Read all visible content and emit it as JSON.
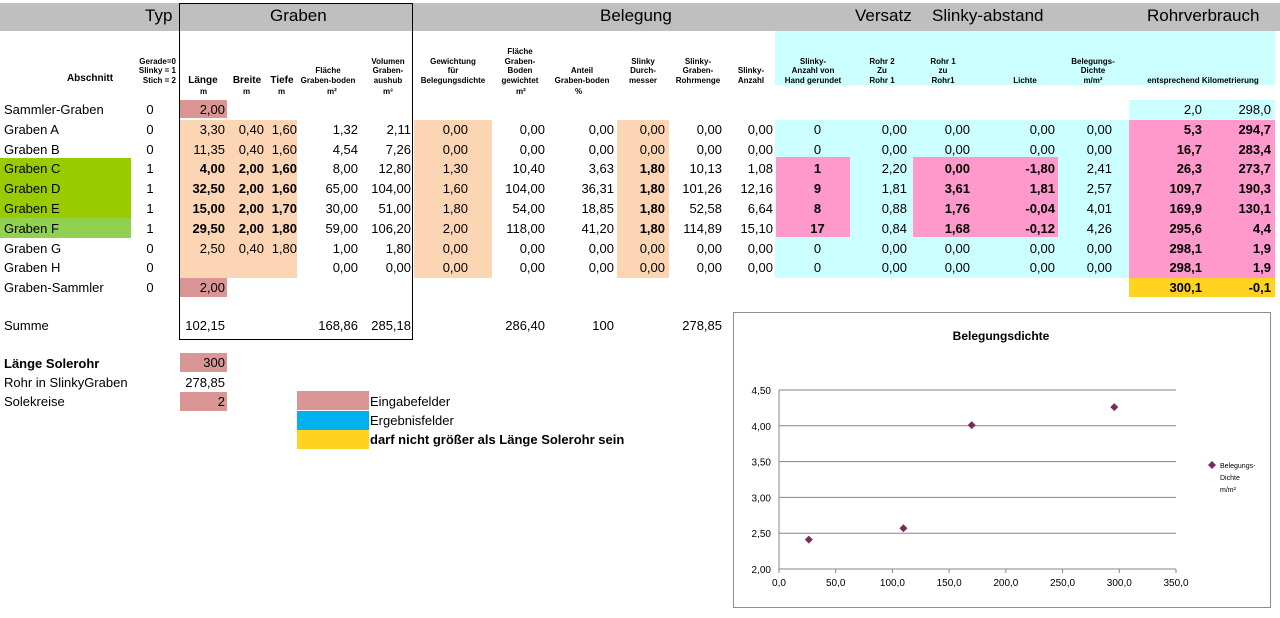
{
  "header_groups": {
    "typ": "Typ",
    "graben": "Graben",
    "belegung": "Belegung",
    "versatz": "Versatz",
    "slinky_abstand": "Slinky-abstand",
    "rohrverbrauch": "Rohrverbrauch"
  },
  "columns": {
    "abschnitt": "Abschnitt",
    "typ_line1": "Gerade=0",
    "typ_line2": "Slinky = 1",
    "typ_line3": "Stich  = 2",
    "laenge": "Länge",
    "breite": "Breite",
    "tiefe": "Tiefe",
    "flaeche_l1": "Fläche",
    "flaeche_l2": "Graben-boden",
    "volumen_l1": "Volumen",
    "volumen_l2": "Graben-",
    "volumen_l3": "aushub",
    "gewichtung_l1": "Gewichtung",
    "gewichtung_l2": "für",
    "gewichtung_l3": "Belegungsdichte",
    "flaeche_gew_l1": "Fläche",
    "flaeche_gew_l2": "Graben-",
    "flaeche_gew_l3": "Boden",
    "flaeche_gew_l4": "gewichtet",
    "anteil_l1": "Anteil",
    "anteil_l2": "Graben-boden",
    "slinky_d_l1": "Slinky",
    "slinky_d_l2": "Durch-",
    "slinky_d_l3": "messer",
    "slinky_rm_l1": "Slinky-",
    "slinky_rm_l2": "Graben-",
    "slinky_rm_l3": "Rohrmenge",
    "slinky_anz_l1": "Slinky-",
    "slinky_anz_l2": "Anzahl",
    "slinky_hand_l1": "Slinky-",
    "slinky_hand_l2": "Anzahl von",
    "slinky_hand_l3": "Hand gerundet",
    "rohr2_l1": "Rohr 2",
    "rohr2_l2": "Zu",
    "rohr2_l3": "Rohr 1",
    "rohr1_l1": "Rohr 1",
    "rohr1_l2": "zu",
    "rohr1_l3": "Rohr1",
    "lichte": "Lichte",
    "beleg_l1": "Belegungs-",
    "beleg_l2": "Dichte",
    "beleg_l3": "m/m²",
    "km": "entsprechend Kilometrierung"
  },
  "units": {
    "laenge": "m",
    "breite": "m",
    "tiefe": "m",
    "flaeche": "m²",
    "volumen": "m³",
    "flaeche_gew": "m²",
    "anteil": "%"
  },
  "rows": [
    {
      "name": "Sammler-Graben",
      "typ": "0",
      "laenge": "2,00",
      "breite": "",
      "tiefe": "",
      "flaeche": "",
      "volumen": "",
      "gew": "",
      "fgew": "",
      "anteil": "",
      "sd": "",
      "srm": "",
      "sanz": "",
      "hand": "",
      "r2": "",
      "r1": "",
      "lichte": "",
      "beleg": "",
      "km1": "2,0",
      "km2": "298,0"
    },
    {
      "name": "Graben A",
      "typ": "0",
      "laenge": "3,30",
      "breite": "0,40",
      "tiefe": "1,60",
      "flaeche": "1,32",
      "volumen": "2,11",
      "gew": "0,00",
      "fgew": "0,00",
      "anteil": "0,00",
      "sd": "0,00",
      "srm": "0,00",
      "sanz": "0,00",
      "hand": "0",
      "r2": "0,00",
      "r1": "0,00",
      "lichte": "0,00",
      "beleg": "0,00",
      "km1": "5,3",
      "km2": "294,7"
    },
    {
      "name": "Graben B",
      "typ": "0",
      "laenge": "11,35",
      "breite": "0,40",
      "tiefe": "1,60",
      "flaeche": "4,54",
      "volumen": "7,26",
      "gew": "0,00",
      "fgew": "0,00",
      "anteil": "0,00",
      "sd": "0,00",
      "srm": "0,00",
      "sanz": "0,00",
      "hand": "0",
      "r2": "0,00",
      "r1": "0,00",
      "lichte": "0,00",
      "beleg": "0,00",
      "km1": "16,7",
      "km2": "283,4"
    },
    {
      "name": "Graben C",
      "typ": "1",
      "laenge": "4,00",
      "breite": "2,00",
      "tiefe": "1,60",
      "flaeche": "8,00",
      "volumen": "12,80",
      "gew": "1,30",
      "fgew": "10,40",
      "anteil": "3,63",
      "sd": "1,80",
      "srm": "10,13",
      "sanz": "1,08",
      "hand": "1",
      "r2": "2,20",
      "r1": "0,00",
      "lichte": "-1,80",
      "beleg": "2,41",
      "km1": "26,3",
      "km2": "273,7"
    },
    {
      "name": "Graben D",
      "typ": "1",
      "laenge": "32,50",
      "breite": "2,00",
      "tiefe": "1,60",
      "flaeche": "65,00",
      "volumen": "104,00",
      "gew": "1,60",
      "fgew": "104,00",
      "anteil": "36,31",
      "sd": "1,80",
      "srm": "101,26",
      "sanz": "12,16",
      "hand": "9",
      "r2": "1,81",
      "r1": "3,61",
      "lichte": "1,81",
      "beleg": "2,57",
      "km1": "109,7",
      "km2": "190,3"
    },
    {
      "name": "Graben E",
      "typ": "1",
      "laenge": "15,00",
      "breite": "2,00",
      "tiefe": "1,70",
      "flaeche": "30,00",
      "volumen": "51,00",
      "gew": "1,80",
      "fgew": "54,00",
      "anteil": "18,85",
      "sd": "1,80",
      "srm": "52,58",
      "sanz": "6,64",
      "hand": "8",
      "r2": "0,88",
      "r1": "1,76",
      "lichte": "-0,04",
      "beleg": "4,01",
      "km1": "169,9",
      "km2": "130,1"
    },
    {
      "name": "Graben F",
      "typ": "1",
      "laenge": "29,50",
      "breite": "2,00",
      "tiefe": "1,80",
      "flaeche": "59,00",
      "volumen": "106,20",
      "gew": "2,00",
      "fgew": "118,00",
      "anteil": "41,20",
      "sd": "1,80",
      "srm": "114,89",
      "sanz": "15,10",
      "hand": "17",
      "r2": "0,84",
      "r1": "1,68",
      "lichte": "-0,12",
      "beleg": "4,26",
      "km1": "295,6",
      "km2": "4,4"
    },
    {
      "name": "Graben G",
      "typ": "0",
      "laenge": "2,50",
      "breite": "0,40",
      "tiefe": "1,80",
      "flaeche": "1,00",
      "volumen": "1,80",
      "gew": "0,00",
      "fgew": "0,00",
      "anteil": "0,00",
      "sd": "0,00",
      "srm": "0,00",
      "sanz": "0,00",
      "hand": "0",
      "r2": "0,00",
      "r1": "0,00",
      "lichte": "0,00",
      "beleg": "0,00",
      "km1": "298,1",
      "km2": "1,9"
    },
    {
      "name": "Graben H",
      "typ": "0",
      "laenge": "",
      "breite": "",
      "tiefe": "",
      "flaeche": "0,00",
      "volumen": "0,00",
      "gew": "0,00",
      "fgew": "0,00",
      "anteil": "0,00",
      "sd": "0,00",
      "srm": "0,00",
      "sanz": "0,00",
      "hand": "0",
      "r2": "0,00",
      "r1": "0,00",
      "lichte": "0,00",
      "beleg": "0,00",
      "km1": "298,1",
      "km2": "1,9"
    },
    {
      "name": "Graben-Sammler",
      "typ": "0",
      "laenge": "2,00",
      "breite": "",
      "tiefe": "",
      "flaeche": "",
      "volumen": "",
      "gew": "",
      "fgew": "",
      "anteil": "",
      "sd": "",
      "srm": "",
      "sanz": "",
      "hand": "",
      "r2": "",
      "r1": "",
      "lichte": "",
      "beleg": "",
      "km1": "300,1",
      "km2": "-0,1"
    }
  ],
  "summe": {
    "label": "Summe",
    "laenge": "102,15",
    "flaeche": "168,86",
    "volumen": "285,18",
    "fgew": "286,40",
    "anteil": "100",
    "srm": "278,85"
  },
  "extra": {
    "laenge_solerohr_label": "Länge Solerohr",
    "laenge_solerohr_value": "300",
    "rohr_slinky_label": "Rohr in SlinkyGraben",
    "rohr_slinky_value": "278,85",
    "solekreise_label": "Solekreise",
    "solekreise_value": "2"
  },
  "legend": {
    "eingabe": "Eingabefelder",
    "ergebnis": "Ergebnisfelder",
    "warnung": "darf nicht größer als Länge Solerohr sein"
  },
  "colors": {
    "header_gray": "#bfbfbf",
    "input_peach": "#fcd5b4",
    "input_rose": "#da9694",
    "result_cyan": "#ccffff",
    "result_pink": "#ff99cc",
    "legend_blue": "#00b0f0",
    "warning_yellow": "#ffd320",
    "green_dark": "#99cc00",
    "green_light": "#92d050",
    "marker": "#7b2c5a"
  },
  "chart_data": {
    "type": "scatter",
    "title": "Belegungsdichte",
    "series": [
      {
        "name": "Belegungs-Dichte m/m²",
        "x": [
          26.3,
          109.7,
          169.9,
          295.6
        ],
        "y": [
          2.41,
          2.57,
          4.01,
          4.26
        ]
      }
    ],
    "legend_lines": [
      "Belegungs-",
      "Dichte",
      "m/m²"
    ],
    "xlim": [
      0,
      350
    ],
    "ylim": [
      2.0,
      4.5
    ],
    "x_ticks": [
      "0,0",
      "50,0",
      "100,0",
      "150,0",
      "200,0",
      "250,0",
      "300,0",
      "350,0"
    ],
    "y_ticks": [
      "2,00",
      "2,50",
      "3,00",
      "3,50",
      "4,00",
      "4,50"
    ],
    "grid": true,
    "legend_position": "right"
  }
}
